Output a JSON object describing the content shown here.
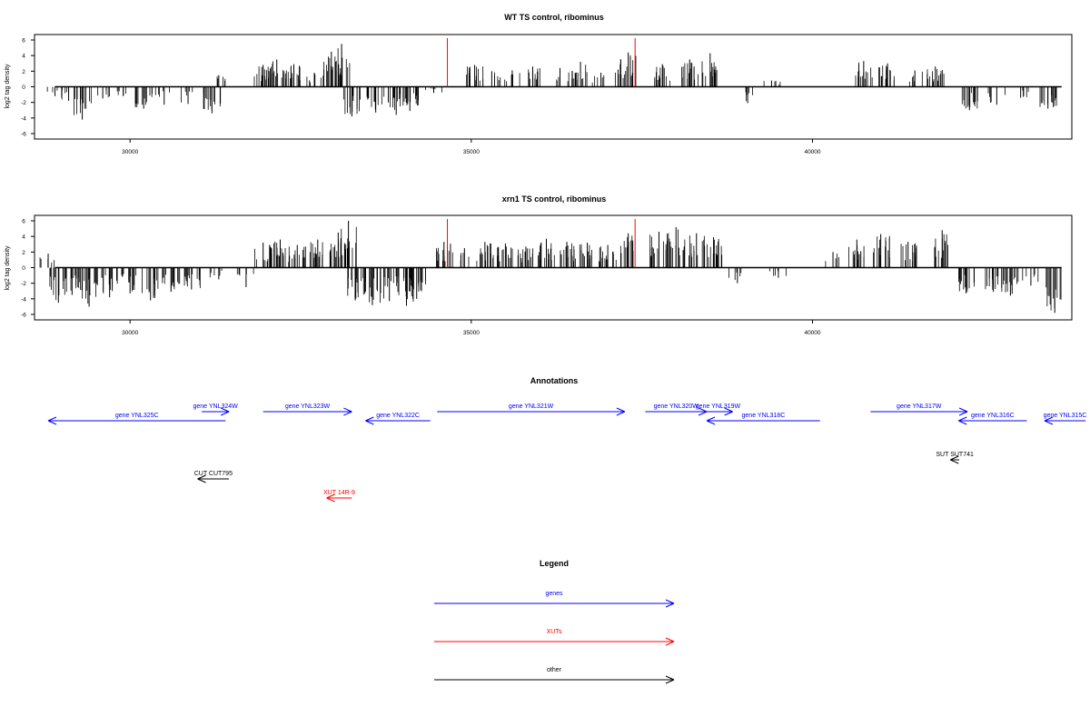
{
  "chart_data": [
    {
      "type": "bar",
      "title": "WT TS control, ribominus",
      "xlabel": "",
      "ylabel": "log2 tag density",
      "xlim": [
        28600,
        43800
      ],
      "ylim": [
        -6,
        6
      ],
      "x_ticks": [
        "30000",
        "35000",
        "40000"
      ],
      "y_ticks": [
        "6",
        "4",
        "2",
        "0",
        "-2",
        "-4",
        "-6"
      ],
      "red_markers_x": [
        34650,
        37400
      ],
      "bars": [
        [
          28900,
          -1.2
        ],
        [
          29100,
          -1.8
        ],
        [
          29300,
          -4.2
        ],
        [
          29600,
          -1.5
        ],
        [
          29900,
          -1.2
        ],
        [
          30200,
          -2.8
        ],
        [
          30500,
          -2.3
        ],
        [
          30850,
          -2.2
        ],
        [
          31200,
          -3.4
        ],
        [
          31300,
          1.5
        ],
        [
          31950,
          2.8
        ],
        [
          32150,
          3.5
        ],
        [
          32400,
          2.9
        ],
        [
          32700,
          1.8
        ],
        [
          32950,
          4.5
        ],
        [
          33100,
          5.5
        ],
        [
          33250,
          -3.8
        ],
        [
          33600,
          -3.3
        ],
        [
          33900,
          -3.6
        ],
        [
          34100,
          -3.1
        ],
        [
          34450,
          -0.8
        ],
        [
          35050,
          2.8
        ],
        [
          35300,
          2.0
        ],
        [
          35600,
          2.1
        ],
        [
          35900,
          2.6
        ],
        [
          36300,
          2.4
        ],
        [
          36600,
          3.2
        ],
        [
          36900,
          1.8
        ],
        [
          37150,
          2.2
        ],
        [
          37300,
          4.4
        ],
        [
          37800,
          2.9
        ],
        [
          38200,
          3.5
        ],
        [
          38500,
          4.3
        ],
        [
          39050,
          -2.1
        ],
        [
          39400,
          0.8
        ],
        [
          40750,
          3.3
        ],
        [
          41100,
          3.0
        ],
        [
          41500,
          2.1
        ],
        [
          41800,
          2.6
        ],
        [
          42300,
          -3.0
        ],
        [
          42700,
          -2.3
        ],
        [
          43050,
          -1.4
        ],
        [
          43450,
          -2.8
        ]
      ]
    },
    {
      "type": "bar",
      "title": "xrn1 TS control, ribominus",
      "xlabel": "",
      "ylabel": "log2 tag density",
      "xlim": [
        28600,
        43800
      ],
      "ylim": [
        -6,
        6
      ],
      "x_ticks": [
        "30000",
        "35000",
        "40000"
      ],
      "y_ticks": [
        "6",
        "4",
        "2",
        "0",
        "-2",
        "-4",
        "-6"
      ],
      "red_markers_x": [
        34650,
        37400
      ],
      "bars": [
        [
          28800,
          1.8
        ],
        [
          28950,
          -4.5
        ],
        [
          29150,
          -3.5
        ],
        [
          29400,
          -5.0
        ],
        [
          29700,
          -3.8
        ],
        [
          30000,
          -3.3
        ],
        [
          30300,
          -4.2
        ],
        [
          30600,
          -3.1
        ],
        [
          30900,
          -2.8
        ],
        [
          31300,
          -1.5
        ],
        [
          31700,
          -2.5
        ],
        [
          31950,
          3.2
        ],
        [
          32200,
          3.6
        ],
        [
          32450,
          2.9
        ],
        [
          32750,
          3.6
        ],
        [
          33050,
          4.5
        ],
        [
          33200,
          6.0
        ],
        [
          33300,
          -4.2
        ],
        [
          33550,
          -4.8
        ],
        [
          33800,
          -4.3
        ],
        [
          34050,
          -4.9
        ],
        [
          34200,
          -4.0
        ],
        [
          34600,
          3.3
        ],
        [
          34900,
          2.5
        ],
        [
          35200,
          3.3
        ],
        [
          35500,
          3.1
        ],
        [
          35800,
          2.7
        ],
        [
          36100,
          3.7
        ],
        [
          36400,
          3.3
        ],
        [
          36700,
          3.2
        ],
        [
          37000,
          2.9
        ],
        [
          37300,
          4.4
        ],
        [
          37750,
          4.6
        ],
        [
          38000,
          5.2
        ],
        [
          38300,
          4.4
        ],
        [
          38550,
          3.9
        ],
        [
          38900,
          -2.0
        ],
        [
          39500,
          -1.3
        ],
        [
          40300,
          2.0
        ],
        [
          40650,
          3.6
        ],
        [
          41000,
          4.3
        ],
        [
          41400,
          3.3
        ],
        [
          41900,
          4.8
        ],
        [
          42250,
          -3.3
        ],
        [
          42650,
          -3.1
        ],
        [
          42900,
          -3.6
        ],
        [
          43200,
          -2.3
        ],
        [
          43550,
          -5.8
        ]
      ]
    }
  ],
  "annotations": {
    "title": "Annotations",
    "items": [
      {
        "label": "gene YNL325C",
        "color": "#0000ff",
        "start": 31400,
        "end": 28800
      },
      {
        "label": "gene YNL324W",
        "color": "#0000ff",
        "start": 31050,
        "end": 31450
      },
      {
        "label": "gene YNL323W",
        "color": "#0000ff",
        "start": 31950,
        "end": 33250
      },
      {
        "label": "gene YNL322C",
        "color": "#0000ff",
        "start": 34400,
        "end": 33450
      },
      {
        "label": "gene YNL321W",
        "color": "#0000ff",
        "start": 34500,
        "end": 37250
      },
      {
        "label": "gene YNL320W",
        "color": "#0000ff",
        "start": 37550,
        "end": 38450
      },
      {
        "label": "gene YNL319W",
        "color": "#0000ff",
        "start": 38400,
        "end": 38830
      },
      {
        "label": "gene YNL318C",
        "color": "#0000ff",
        "start": 40110,
        "end": 38450
      },
      {
        "label": "gene YNL317W",
        "color": "#0000ff",
        "start": 40850,
        "end": 42270
      },
      {
        "label": "gene YNL316C",
        "color": "#0000ff",
        "start": 43140,
        "end": 42140
      },
      {
        "label": "gene YNL315C",
        "color": "#0000ff",
        "start": 44000,
        "end": 43400
      },
      {
        "label": "SUT SUT741",
        "color": "#000000",
        "start": 42150,
        "end": 42020
      },
      {
        "label": "CUT CUT795",
        "color": "#000000",
        "start": 31450,
        "end": 30990
      },
      {
        "label": "XUT 14R-9",
        "color": "#ff0000",
        "start": 33250,
        "end": 32880
      }
    ]
  },
  "legend": {
    "title": "Legend",
    "items": [
      {
        "label": "genes",
        "color": "#0000ff"
      },
      {
        "label": "XUTs",
        "color": "#ff0000"
      },
      {
        "label": "other",
        "color": "#000000"
      }
    ]
  }
}
